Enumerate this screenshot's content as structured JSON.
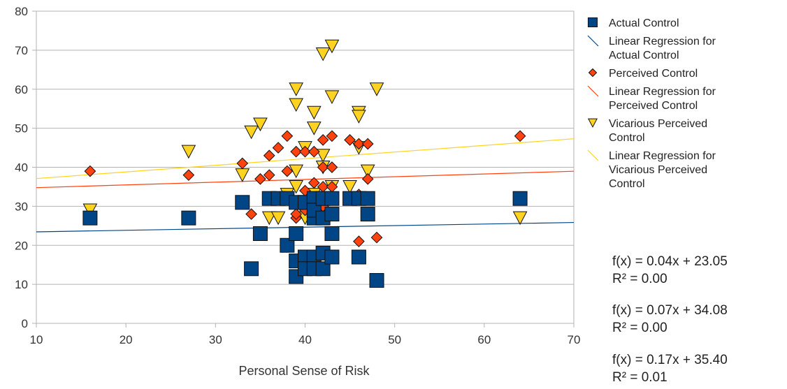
{
  "chart_data": {
    "type": "scatter",
    "title": "",
    "xlabel": "Personal Sense of Risk",
    "ylabel": "",
    "xlim": [
      10,
      70
    ],
    "ylim": [
      0,
      80
    ],
    "x_ticks": [
      "10",
      "20",
      "30",
      "40",
      "50",
      "60",
      "70"
    ],
    "y_ticks": [
      "0",
      "10",
      "20",
      "30",
      "40",
      "50",
      "60",
      "70",
      "80"
    ],
    "grid": "horizontal",
    "legend_position": "right",
    "legend": [
      {
        "lines": [
          "Actual Control"
        ]
      },
      {
        "lines": [
          "Linear Regression for",
          "Actual Control"
        ]
      },
      {
        "lines": [
          "Perceived Control"
        ]
      },
      {
        "lines": [
          "Linear Regression for",
          "Perceived Control"
        ]
      },
      {
        "lines": [
          "Vicarious Perceived",
          "Control"
        ]
      },
      {
        "lines": [
          "Linear Regression for",
          "Vicarious Perceived",
          "Control"
        ]
      }
    ],
    "series": [
      {
        "name": "Actual Control",
        "marker": "square",
        "color": "#004586",
        "points": [
          [
            16,
            27
          ],
          [
            27,
            27
          ],
          [
            33,
            31
          ],
          [
            34,
            14
          ],
          [
            35,
            23
          ],
          [
            36,
            32
          ],
          [
            37,
            32
          ],
          [
            38,
            32
          ],
          [
            38,
            20
          ],
          [
            39,
            31
          ],
          [
            39,
            23
          ],
          [
            39,
            16
          ],
          [
            39,
            12
          ],
          [
            40,
            17
          ],
          [
            40,
            14
          ],
          [
            40,
            31
          ],
          [
            41,
            32
          ],
          [
            41,
            27
          ],
          [
            41,
            29
          ],
          [
            41,
            17
          ],
          [
            41,
            14
          ],
          [
            42,
            27
          ],
          [
            42,
            32
          ],
          [
            42,
            18
          ],
          [
            42,
            14
          ],
          [
            43,
            32
          ],
          [
            43,
            28
          ],
          [
            43,
            23
          ],
          [
            43,
            17
          ],
          [
            45,
            32
          ],
          [
            46,
            32
          ],
          [
            46,
            17
          ],
          [
            47,
            32
          ],
          [
            47,
            28
          ],
          [
            48,
            11
          ],
          [
            64,
            32
          ]
        ]
      },
      {
        "name": "Perceived Control",
        "marker": "diamond",
        "color": "#ff420e",
        "points": [
          [
            16,
            39
          ],
          [
            27,
            38
          ],
          [
            33,
            41
          ],
          [
            34,
            28
          ],
          [
            35,
            37
          ],
          [
            36,
            43
          ],
          [
            36,
            38
          ],
          [
            37,
            45
          ],
          [
            38,
            48
          ],
          [
            38,
            39
          ],
          [
            39,
            44
          ],
          [
            39,
            27
          ],
          [
            39,
            28
          ],
          [
            40,
            44
          ],
          [
            40,
            34
          ],
          [
            40,
            29
          ],
          [
            41,
            44
          ],
          [
            41,
            36
          ],
          [
            42,
            47
          ],
          [
            42,
            40
          ],
          [
            42,
            35
          ],
          [
            42,
            30
          ],
          [
            43,
            48
          ],
          [
            43,
            40
          ],
          [
            43,
            35
          ],
          [
            45,
            47
          ],
          [
            46,
            46
          ],
          [
            46,
            33
          ],
          [
            46,
            21
          ],
          [
            47,
            46
          ],
          [
            47,
            37
          ],
          [
            48,
            22
          ],
          [
            64,
            48
          ]
        ]
      },
      {
        "name": "Vicarious Perceived Control",
        "marker": "triangle-down",
        "color": "#ffd320",
        "points": [
          [
            16,
            29
          ],
          [
            27,
            44
          ],
          [
            33,
            38
          ],
          [
            34,
            49
          ],
          [
            35,
            51
          ],
          [
            36,
            27
          ],
          [
            37,
            27
          ],
          [
            38,
            33
          ],
          [
            39,
            60
          ],
          [
            39,
            56
          ],
          [
            39,
            39
          ],
          [
            39,
            35
          ],
          [
            40,
            45
          ],
          [
            40,
            27
          ],
          [
            41,
            54
          ],
          [
            41,
            50
          ],
          [
            41,
            33
          ],
          [
            42,
            69
          ],
          [
            42,
            43
          ],
          [
            42,
            40
          ],
          [
            42,
            30
          ],
          [
            43,
            71
          ],
          [
            43,
            58
          ],
          [
            43,
            35
          ],
          [
            45,
            35
          ],
          [
            46,
            54
          ],
          [
            46,
            53
          ],
          [
            46,
            45
          ],
          [
            47,
            39
          ],
          [
            48,
            60
          ],
          [
            64,
            27
          ]
        ]
      }
    ],
    "regressions": [
      {
        "name": "Linear Regression for Actual Control",
        "slope": 0.04,
        "intercept": 23.05,
        "color": "#004586"
      },
      {
        "name": "Linear Regression for Perceived Control",
        "slope": 0.07,
        "intercept": 34.08,
        "color": "#ff420e"
      },
      {
        "name": "Linear Regression for Vicarious Perceived Control",
        "slope": 0.17,
        "intercept": 35.4,
        "color": "#ffd320"
      }
    ],
    "equations": [
      {
        "fx": "f(x) = 0.04x + 23.05",
        "r2": "R² = 0.00"
      },
      {
        "fx": "f(x) = 0.07x + 34.08",
        "r2": "R² = 0.00"
      },
      {
        "fx": "f(x) = 0.17x + 35.40",
        "r2": "R² = 0.01"
      }
    ]
  }
}
